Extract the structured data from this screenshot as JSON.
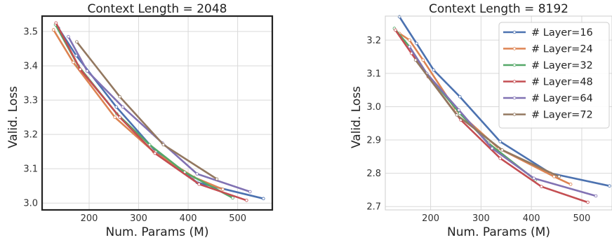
{
  "chart_data": [
    {
      "type": "line",
      "title": "Context Length = 2048",
      "xlabel": "Num. Params (M)",
      "ylabel": "Valid. Loss",
      "xlim": [
        105,
        570
      ],
      "ylim": [
        2.98,
        3.545
      ],
      "xticks": [
        200,
        300,
        400,
        500
      ],
      "yticks": [
        3.0,
        3.1,
        3.2,
        3.3,
        3.4,
        3.5
      ],
      "xtick_labels": [
        "200",
        "300",
        "400",
        "500"
      ],
      "ytick_labels": [
        "3.0",
        "3.1",
        "3.2",
        "3.3",
        "3.4",
        "3.5"
      ],
      "grid": true,
      "legend": false,
      "series": [
        {
          "name": "# Layer=16",
          "color": "#4C72B0",
          "x": [
            138,
            174,
            255,
            335,
            418,
            552
          ],
          "y": [
            3.51,
            3.43,
            3.28,
            3.15,
            3.06,
            3.013
          ]
        },
        {
          "name": "# Layer=24",
          "color": "#DD8452",
          "x": [
            128,
            168,
            252,
            330,
            412,
            470
          ],
          "y": [
            3.505,
            3.41,
            3.25,
            3.15,
            3.075,
            3.04
          ]
        },
        {
          "name": "# Layer=32",
          "color": "#55A868",
          "x": [
            132,
            178,
            256,
            322,
            393,
            490
          ],
          "y": [
            3.52,
            3.4,
            3.26,
            3.17,
            3.09,
            3.015
          ]
        },
        {
          "name": "# Layer=48",
          "color": "#C44E52",
          "x": [
            133,
            182,
            262,
            333,
            422,
            518
          ],
          "y": [
            3.525,
            3.39,
            3.25,
            3.145,
            3.055,
            3.008
          ]
        },
        {
          "name": "# Layer=64",
          "color": "#8172B3",
          "x": [
            158,
            196,
            268,
            348,
            418,
            525
          ],
          "y": [
            3.485,
            3.385,
            3.28,
            3.175,
            3.085,
            3.033
          ]
        },
        {
          "name": "# Layer=72",
          "color": "#937860",
          "x": [
            175,
            262,
            350,
            458
          ],
          "y": [
            3.47,
            3.31,
            3.17,
            3.07
          ]
        }
      ]
    },
    {
      "type": "line",
      "title": "Context Length = 8192",
      "xlabel": "Num. Params (M)",
      "ylabel": "Valid. Loss",
      "xlim": [
        110,
        560
      ],
      "ylim": [
        2.69,
        3.272
      ],
      "xticks": [
        200,
        300,
        400,
        500
      ],
      "yticks": [
        2.7,
        2.8,
        2.9,
        3.0,
        3.1,
        3.2
      ],
      "xtick_labels": [
        "200",
        "300",
        "400",
        "500"
      ],
      "ytick_labels": [
        "2.7",
        "2.8",
        "2.9",
        "3.0",
        "3.1",
        "3.2"
      ],
      "grid": true,
      "legend": true,
      "legend_position": "top-right",
      "series": [
        {
          "name": "# Layer=16",
          "color": "#4C72B0",
          "x": [
            138,
            172,
            206,
            258,
            338,
            438,
            555
          ],
          "y": [
            3.27,
            3.19,
            3.11,
            3.03,
            2.895,
            2.8,
            2.762
          ]
        },
        {
          "name": "# Layer=24",
          "color": "#DD8452",
          "x": [
            138,
            158,
            185,
            250,
            335,
            445,
            478
          ],
          "y": [
            3.22,
            3.2,
            3.14,
            2.99,
            2.875,
            2.79,
            2.767
          ]
        },
        {
          "name": "# Layer=32",
          "color": "#55A868",
          "x": [
            128,
            158,
            192,
            258,
            315,
            408
          ],
          "y": [
            3.235,
            3.18,
            3.1,
            2.98,
            2.89,
            2.78
          ]
        },
        {
          "name": "# Layer=48",
          "color": "#C44E52",
          "x": [
            130,
            162,
            195,
            260,
            338,
            420,
            512
          ],
          "y": [
            3.23,
            3.16,
            3.09,
            2.96,
            2.845,
            2.76,
            2.713
          ]
        },
        {
          "name": "# Layer=64",
          "color": "#8172B3",
          "x": [
            158,
            192,
            256,
            322,
            405,
            528
          ],
          "y": [
            3.18,
            3.1,
            2.99,
            2.875,
            2.785,
            2.732
          ]
        },
        {
          "name": "# Layer=72",
          "color": "#937860",
          "x": [
            170,
            252,
            342,
            455
          ],
          "y": [
            3.14,
            2.975,
            2.87,
            2.79
          ]
        }
      ]
    }
  ]
}
